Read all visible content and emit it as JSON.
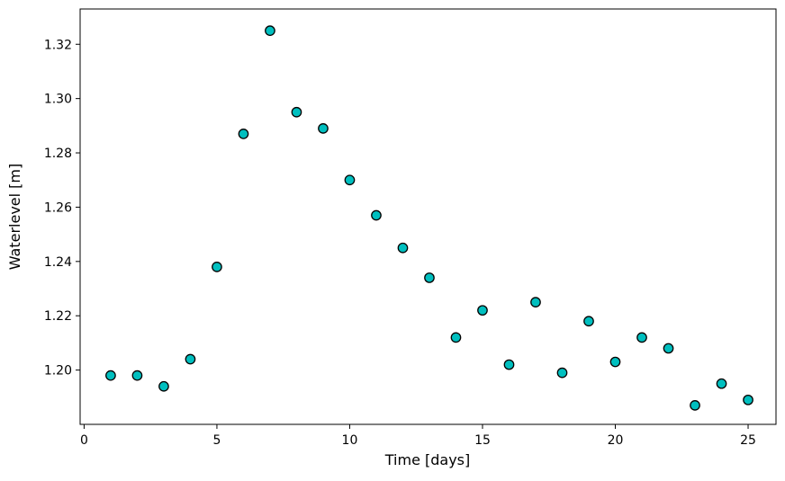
{
  "chart_data": {
    "type": "scatter",
    "xlabel": "Time [days]",
    "ylabel": "Waterlevel [m]",
    "x": [
      1,
      2,
      3,
      4,
      5,
      6,
      7,
      8,
      9,
      10,
      11,
      12,
      13,
      14,
      15,
      16,
      17,
      18,
      19,
      20,
      21,
      22,
      23,
      24,
      25
    ],
    "y": [
      1.198,
      1.198,
      1.194,
      1.204,
      1.238,
      1.287,
      1.325,
      1.295,
      1.289,
      1.27,
      1.257,
      1.245,
      1.234,
      1.212,
      1.222,
      1.202,
      1.225,
      1.199,
      1.218,
      1.203,
      1.212,
      1.208,
      1.187,
      1.195,
      1.189
    ],
    "xlim": [
      -0.15,
      26.05
    ],
    "ylim": [
      1.18,
      1.333
    ],
    "xticks": [
      0,
      5,
      10,
      15,
      20,
      25
    ],
    "xtick_labels": [
      "0",
      "5",
      "10",
      "15",
      "20",
      "25"
    ],
    "yticks": [
      1.2,
      1.22,
      1.24,
      1.26,
      1.28,
      1.3,
      1.32
    ],
    "ytick_labels": [
      "1.20",
      "1.22",
      "1.24",
      "1.26",
      "1.28",
      "1.30",
      "1.32"
    ],
    "grid": false,
    "legend": null,
    "marker": {
      "shape": "circle",
      "fill_color": "#00bfbf",
      "edge_color": "#000000",
      "radius_px": 5.2
    },
    "colors": {
      "background": "#ffffff",
      "axis": "#000000",
      "text": "#000000"
    }
  }
}
